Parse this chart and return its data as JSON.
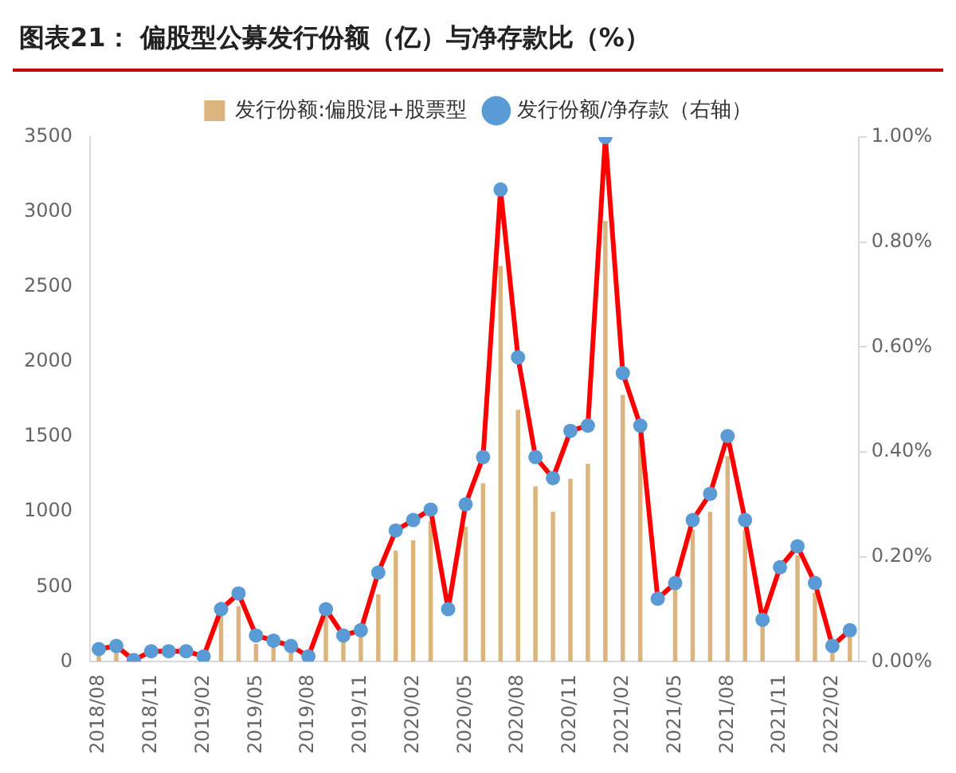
{
  "chart_data": {
    "type": "bar",
    "title": "图表21：  偏股型公募发行份额（亿）与净存款比（%）",
    "categories": [
      "2018/08",
      null,
      null,
      "2018/11",
      null,
      null,
      "2019/02",
      null,
      null,
      "2019/05",
      null,
      null,
      "2019/08",
      null,
      null,
      "2019/11",
      null,
      null,
      "2020/02",
      null,
      null,
      "2020/05",
      null,
      null,
      "2020/08",
      null,
      null,
      "2020/11",
      null,
      null,
      "2021/02",
      null,
      null,
      "2021/05",
      null,
      null,
      "2021/08",
      null,
      null,
      "2021/11",
      null,
      null,
      "2022/02",
      null
    ],
    "series": [
      {
        "name": "发行份额:偏股混+股票型",
        "color": "#dcb57e",
        "values": [
          60,
          80,
          10,
          null,
          null,
          null,
          null,
          400,
          370,
          120,
          110,
          80,
          null,
          300,
          150,
          180,
          450,
          740,
          810,
          940,
          null,
          900,
          1190,
          2640,
          1680,
          1170,
          1000,
          1220,
          1320,
          2940,
          1780,
          1520,
          null,
          500,
          880,
          1000,
          1370,
          880,
          250,
          null,
          710,
          460,
          80,
          200
        ]
      },
      {
        "name": "发行份额/净存款（右轴）",
        "type": "line",
        "axis": "y2",
        "color": "#ff0000",
        "values": [
          0.024,
          0.03,
          0.003,
          0.02,
          0.02,
          0.02,
          0.01,
          0.1,
          0.13,
          0.05,
          0.04,
          0.03,
          0.01,
          0.1,
          0.05,
          0.06,
          0.17,
          0.25,
          0.27,
          0.29,
          0.1,
          0.3,
          0.39,
          0.9,
          0.58,
          0.39,
          0.35,
          0.44,
          0.45,
          1.0,
          0.55,
          0.45,
          0.12,
          0.15,
          0.27,
          0.32,
          0.43,
          0.27,
          0.08,
          0.18,
          0.22,
          0.15,
          0.03,
          0.06
        ]
      }
    ],
    "marker": "circle",
    "line_style": "solid",
    "legend": "top",
    "grid": false,
    "ylim": [
      0,
      3500
    ],
    "yticks": [
      0,
      500,
      1000,
      1500,
      2000,
      2500,
      3000,
      3500
    ],
    "y2lim": [
      0,
      1.0
    ],
    "y2ticks": [
      {
        "value": 0,
        "label": "0.00%"
      },
      {
        "value": 0.2,
        "label": "0.20%"
      },
      {
        "value": 0.4,
        "label": "0.40%"
      },
      {
        "value": 0.6,
        "label": "0.60%"
      },
      {
        "value": 0.8,
        "label": "0.80%"
      },
      {
        "value": 1.0,
        "label": "1.00%"
      }
    ]
  }
}
